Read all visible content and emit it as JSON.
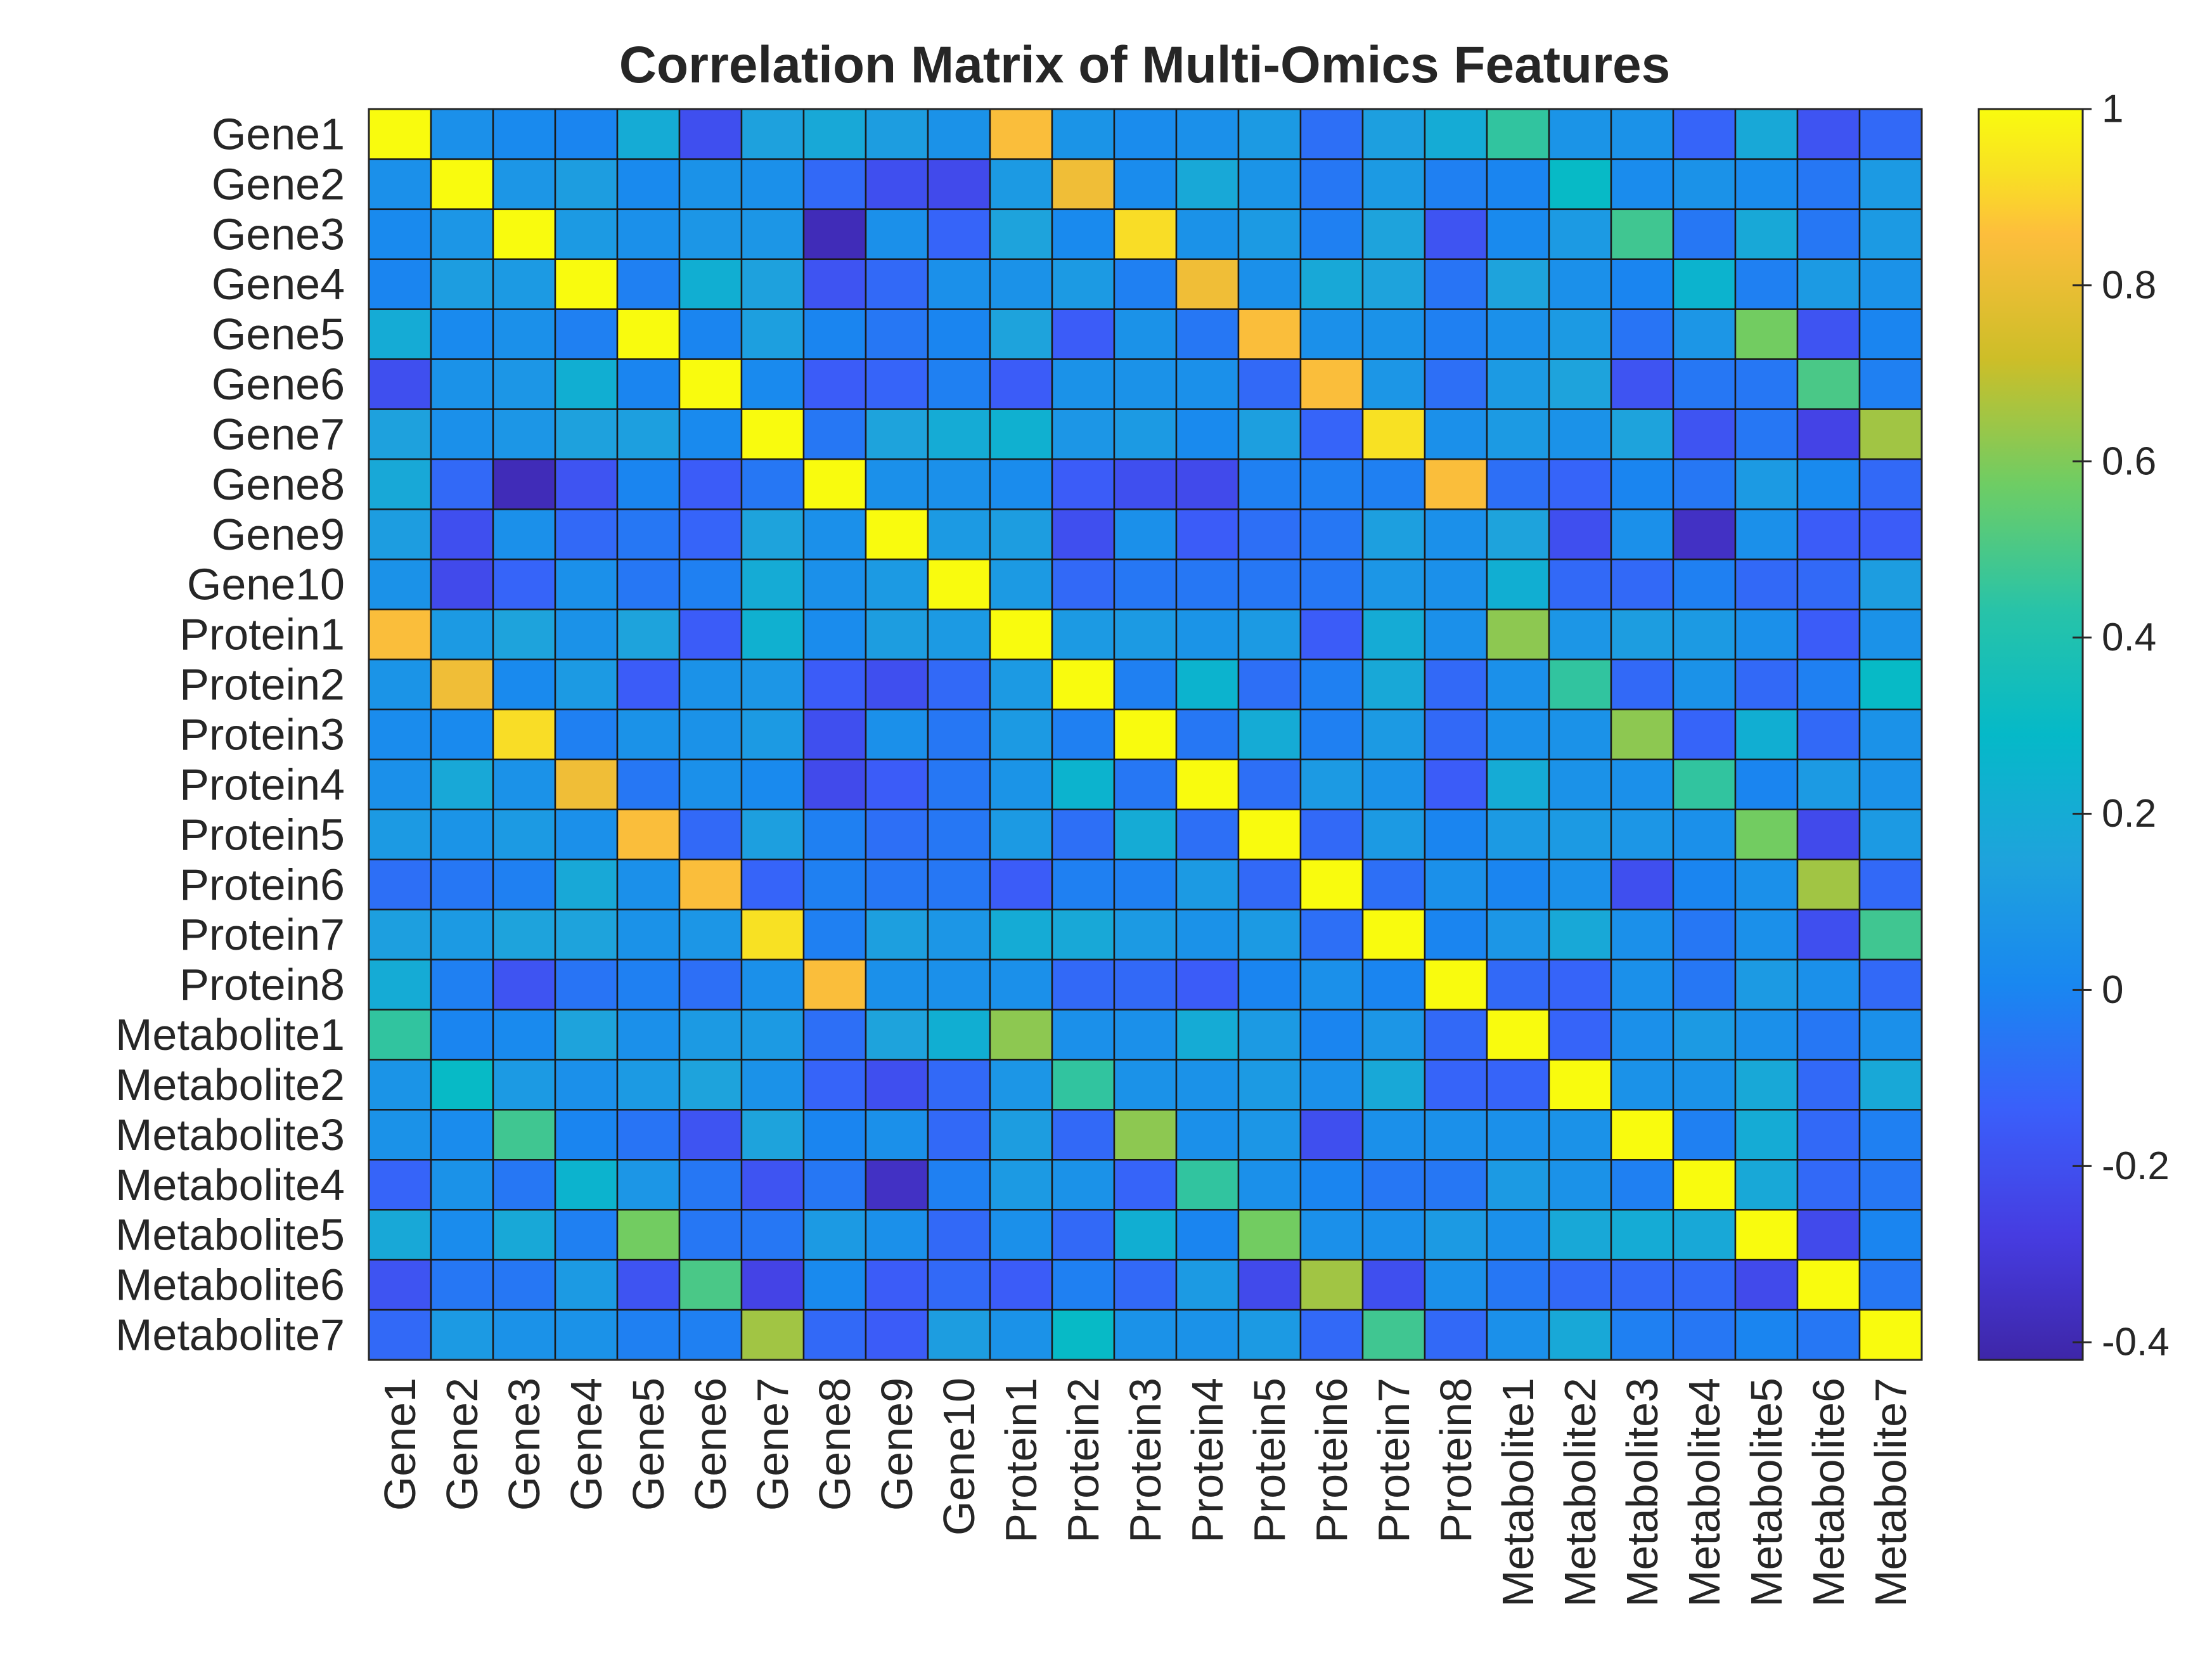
{
  "chart_data": {
    "type": "heatmap",
    "title": "Correlation Matrix of Multi-Omics Features",
    "labels": [
      "Gene1",
      "Gene2",
      "Gene3",
      "Gene4",
      "Gene5",
      "Gene6",
      "Gene7",
      "Gene8",
      "Gene9",
      "Gene10",
      "Protein1",
      "Protein2",
      "Protein3",
      "Protein4",
      "Protein5",
      "Protein6",
      "Protein7",
      "Protein8",
      "Metabolite1",
      "Metabolite2",
      "Metabolite3",
      "Metabolite4",
      "Metabolite5",
      "Metabolite6",
      "Metabolite7"
    ],
    "colorbar": {
      "min": -0.42,
      "max": 1,
      "ticks": [
        "1",
        "0.8",
        "0.6",
        "0.4",
        "0.2",
        "0",
        "-0.2",
        "-0.4"
      ],
      "tick_values": [
        1,
        0.8,
        0.6,
        0.4,
        0.2,
        0,
        -0.2,
        -0.4
      ]
    },
    "colormap": "parula",
    "values": [
      [
        1.0,
        0.05,
        0.02,
        0.0,
        0.2,
        -0.2,
        0.14,
        0.18,
        0.12,
        0.06,
        0.85,
        0.07,
        0.03,
        0.05,
        0.1,
        -0.08,
        0.13,
        0.2,
        0.45,
        0.07,
        0.06,
        -0.12,
        0.18,
        -0.18,
        -0.1
      ],
      [
        0.05,
        1.0,
        0.08,
        0.12,
        0.02,
        0.06,
        0.05,
        -0.1,
        -0.2,
        -0.22,
        0.1,
        0.82,
        0.03,
        0.18,
        0.07,
        -0.05,
        0.1,
        -0.02,
        0.0,
        0.3,
        0.03,
        0.06,
        0.03,
        -0.05,
        0.1
      ],
      [
        0.02,
        0.08,
        1.0,
        0.1,
        0.05,
        0.08,
        0.08,
        -0.38,
        0.05,
        -0.12,
        0.15,
        0.02,
        0.92,
        0.06,
        0.1,
        -0.02,
        0.15,
        -0.18,
        0.02,
        0.1,
        0.48,
        -0.05,
        0.18,
        -0.05,
        0.1
      ],
      [
        0.0,
        0.12,
        0.1,
        1.0,
        -0.02,
        0.22,
        0.14,
        -0.18,
        -0.1,
        0.05,
        0.06,
        0.1,
        -0.02,
        0.82,
        0.05,
        0.18,
        0.15,
        -0.06,
        0.15,
        0.05,
        0.0,
        0.25,
        -0.02,
        0.1,
        0.06
      ],
      [
        0.2,
        0.02,
        0.05,
        -0.02,
        1.0,
        0.0,
        0.13,
        0.0,
        -0.05,
        0.0,
        0.15,
        -0.15,
        0.06,
        -0.05,
        0.85,
        0.05,
        0.06,
        -0.02,
        0.05,
        0.1,
        -0.06,
        0.08,
        0.58,
        -0.18,
        0.0
      ],
      [
        -0.2,
        0.06,
        0.08,
        0.22,
        0.0,
        1.0,
        0.02,
        -0.15,
        -0.12,
        -0.02,
        -0.15,
        0.06,
        0.06,
        0.05,
        -0.1,
        0.85,
        0.08,
        -0.08,
        0.1,
        0.15,
        -0.18,
        -0.05,
        -0.05,
        0.5,
        -0.02
      ],
      [
        0.14,
        0.05,
        0.08,
        0.14,
        0.13,
        0.02,
        1.0,
        -0.05,
        0.15,
        0.2,
        0.23,
        0.08,
        0.1,
        0.02,
        0.13,
        -0.12,
        0.93,
        0.05,
        0.1,
        0.06,
        0.15,
        -0.18,
        -0.05,
        -0.25,
        0.65
      ],
      [
        0.18,
        -0.1,
        -0.38,
        -0.18,
        0.0,
        -0.15,
        -0.05,
        1.0,
        0.05,
        0.05,
        0.03,
        -0.15,
        -0.2,
        -0.22,
        -0.02,
        -0.02,
        -0.02,
        0.85,
        -0.08,
        -0.12,
        0.0,
        -0.05,
        0.1,
        0.02,
        -0.1
      ],
      [
        0.12,
        -0.2,
        0.05,
        -0.1,
        -0.05,
        -0.12,
        0.15,
        0.05,
        1.0,
        0.1,
        0.12,
        -0.2,
        0.05,
        -0.15,
        -0.08,
        -0.05,
        0.13,
        0.05,
        0.15,
        -0.2,
        0.05,
        -0.35,
        0.05,
        -0.15,
        -0.15
      ],
      [
        0.06,
        -0.22,
        -0.12,
        0.05,
        -0.05,
        -0.02,
        0.2,
        0.05,
        0.1,
        1.0,
        0.1,
        -0.1,
        -0.05,
        -0.05,
        -0.05,
        -0.05,
        0.08,
        0.05,
        0.22,
        -0.1,
        -0.1,
        -0.02,
        -0.1,
        -0.1,
        0.12
      ],
      [
        0.85,
        0.1,
        0.15,
        0.06,
        0.15,
        -0.15,
        0.23,
        0.03,
        0.12,
        0.1,
        1.0,
        0.1,
        0.1,
        0.07,
        0.1,
        -0.15,
        0.2,
        0.05,
        0.62,
        0.08,
        0.12,
        0.1,
        0.05,
        -0.15,
        0.06
      ],
      [
        0.07,
        0.82,
        0.02,
        0.1,
        -0.15,
        0.06,
        0.08,
        -0.15,
        -0.2,
        -0.1,
        0.1,
        1.0,
        -0.02,
        0.25,
        -0.08,
        -0.02,
        0.18,
        -0.1,
        0.05,
        0.45,
        -0.1,
        0.06,
        -0.1,
        -0.02,
        0.3
      ],
      [
        0.03,
        0.02,
        0.92,
        -0.02,
        0.06,
        0.06,
        0.1,
        -0.2,
        0.05,
        -0.05,
        0.1,
        -0.02,
        1.0,
        -0.05,
        0.2,
        -0.02,
        0.1,
        -0.1,
        0.05,
        0.06,
        0.62,
        -0.12,
        0.22,
        -0.1,
        0.06
      ],
      [
        0.05,
        0.18,
        0.06,
        0.82,
        -0.05,
        0.05,
        0.02,
        -0.22,
        -0.15,
        -0.05,
        0.07,
        0.25,
        -0.05,
        1.0,
        -0.08,
        0.1,
        0.06,
        -0.15,
        0.2,
        0.06,
        0.05,
        0.45,
        0.0,
        0.1,
        0.06
      ],
      [
        0.1,
        0.07,
        0.1,
        0.05,
        0.85,
        -0.1,
        0.13,
        -0.02,
        -0.08,
        -0.05,
        0.1,
        -0.08,
        0.2,
        -0.08,
        1.0,
        -0.1,
        0.1,
        0.0,
        0.1,
        0.1,
        0.08,
        0.05,
        0.58,
        -0.22,
        0.1
      ],
      [
        -0.08,
        -0.05,
        -0.02,
        0.18,
        0.05,
        0.85,
        -0.12,
        -0.02,
        -0.05,
        -0.05,
        -0.15,
        -0.02,
        -0.02,
        0.1,
        -0.1,
        1.0,
        -0.08,
        0.05,
        0.0,
        0.05,
        -0.2,
        0.0,
        0.05,
        0.65,
        -0.1
      ],
      [
        0.13,
        0.1,
        0.15,
        0.15,
        0.06,
        0.08,
        0.93,
        -0.02,
        0.13,
        0.08,
        0.2,
        0.18,
        0.1,
        0.06,
        0.1,
        -0.08,
        1.0,
        0.0,
        0.08,
        0.18,
        0.05,
        -0.05,
        0.05,
        -0.2,
        0.48
      ],
      [
        0.2,
        -0.02,
        -0.18,
        -0.06,
        -0.02,
        -0.08,
        0.05,
        0.85,
        0.05,
        0.05,
        0.05,
        -0.1,
        -0.1,
        -0.15,
        0.0,
        0.05,
        0.0,
        1.0,
        -0.1,
        -0.12,
        0.05,
        -0.05,
        0.1,
        0.05,
        -0.1
      ],
      [
        0.45,
        0.0,
        0.02,
        0.15,
        0.05,
        0.1,
        0.1,
        -0.08,
        0.15,
        0.22,
        0.62,
        0.05,
        0.05,
        0.2,
        0.1,
        0.0,
        0.08,
        -0.1,
        1.0,
        -0.12,
        0.05,
        0.1,
        0.05,
        -0.05,
        0.05
      ],
      [
        0.07,
        0.3,
        0.1,
        0.05,
        0.1,
        0.15,
        0.06,
        -0.12,
        -0.2,
        -0.1,
        0.08,
        0.45,
        0.06,
        0.06,
        0.1,
        0.05,
        0.18,
        -0.12,
        -0.12,
        1.0,
        0.06,
        0.06,
        0.18,
        -0.1,
        0.18
      ],
      [
        0.06,
        0.03,
        0.48,
        0.0,
        -0.06,
        -0.18,
        0.15,
        0.0,
        0.05,
        -0.1,
        0.12,
        -0.1,
        0.62,
        0.05,
        0.08,
        -0.2,
        0.05,
        0.05,
        0.05,
        0.06,
        1.0,
        -0.02,
        0.2,
        -0.1,
        -0.02
      ],
      [
        -0.12,
        0.06,
        -0.05,
        0.25,
        0.08,
        -0.05,
        -0.18,
        -0.05,
        -0.35,
        -0.02,
        0.1,
        0.06,
        -0.12,
        0.45,
        0.05,
        0.0,
        -0.05,
        -0.05,
        0.1,
        0.06,
        -0.02,
        1.0,
        0.18,
        -0.1,
        -0.05
      ],
      [
        0.18,
        0.03,
        0.18,
        -0.02,
        0.58,
        -0.05,
        -0.05,
        0.1,
        0.05,
        -0.1,
        0.05,
        -0.1,
        0.22,
        0.0,
        0.58,
        0.05,
        0.05,
        0.1,
        0.05,
        0.18,
        0.2,
        0.18,
        1.0,
        -0.22,
        0.0
      ],
      [
        -0.18,
        -0.05,
        -0.05,
        0.1,
        -0.18,
        0.5,
        -0.25,
        0.02,
        -0.15,
        -0.1,
        -0.15,
        -0.02,
        -0.1,
        0.1,
        -0.22,
        0.65,
        -0.2,
        0.05,
        -0.05,
        -0.1,
        -0.1,
        -0.1,
        -0.22,
        1.0,
        -0.05
      ],
      [
        -0.1,
        0.1,
        0.06,
        0.06,
        -0.02,
        -0.02,
        0.65,
        -0.1,
        -0.15,
        0.12,
        0.06,
        0.3,
        0.06,
        0.06,
        0.1,
        -0.1,
        0.48,
        -0.1,
        0.05,
        0.18,
        -0.02,
        -0.05,
        0.0,
        -0.05,
        1.0
      ]
    ]
  }
}
